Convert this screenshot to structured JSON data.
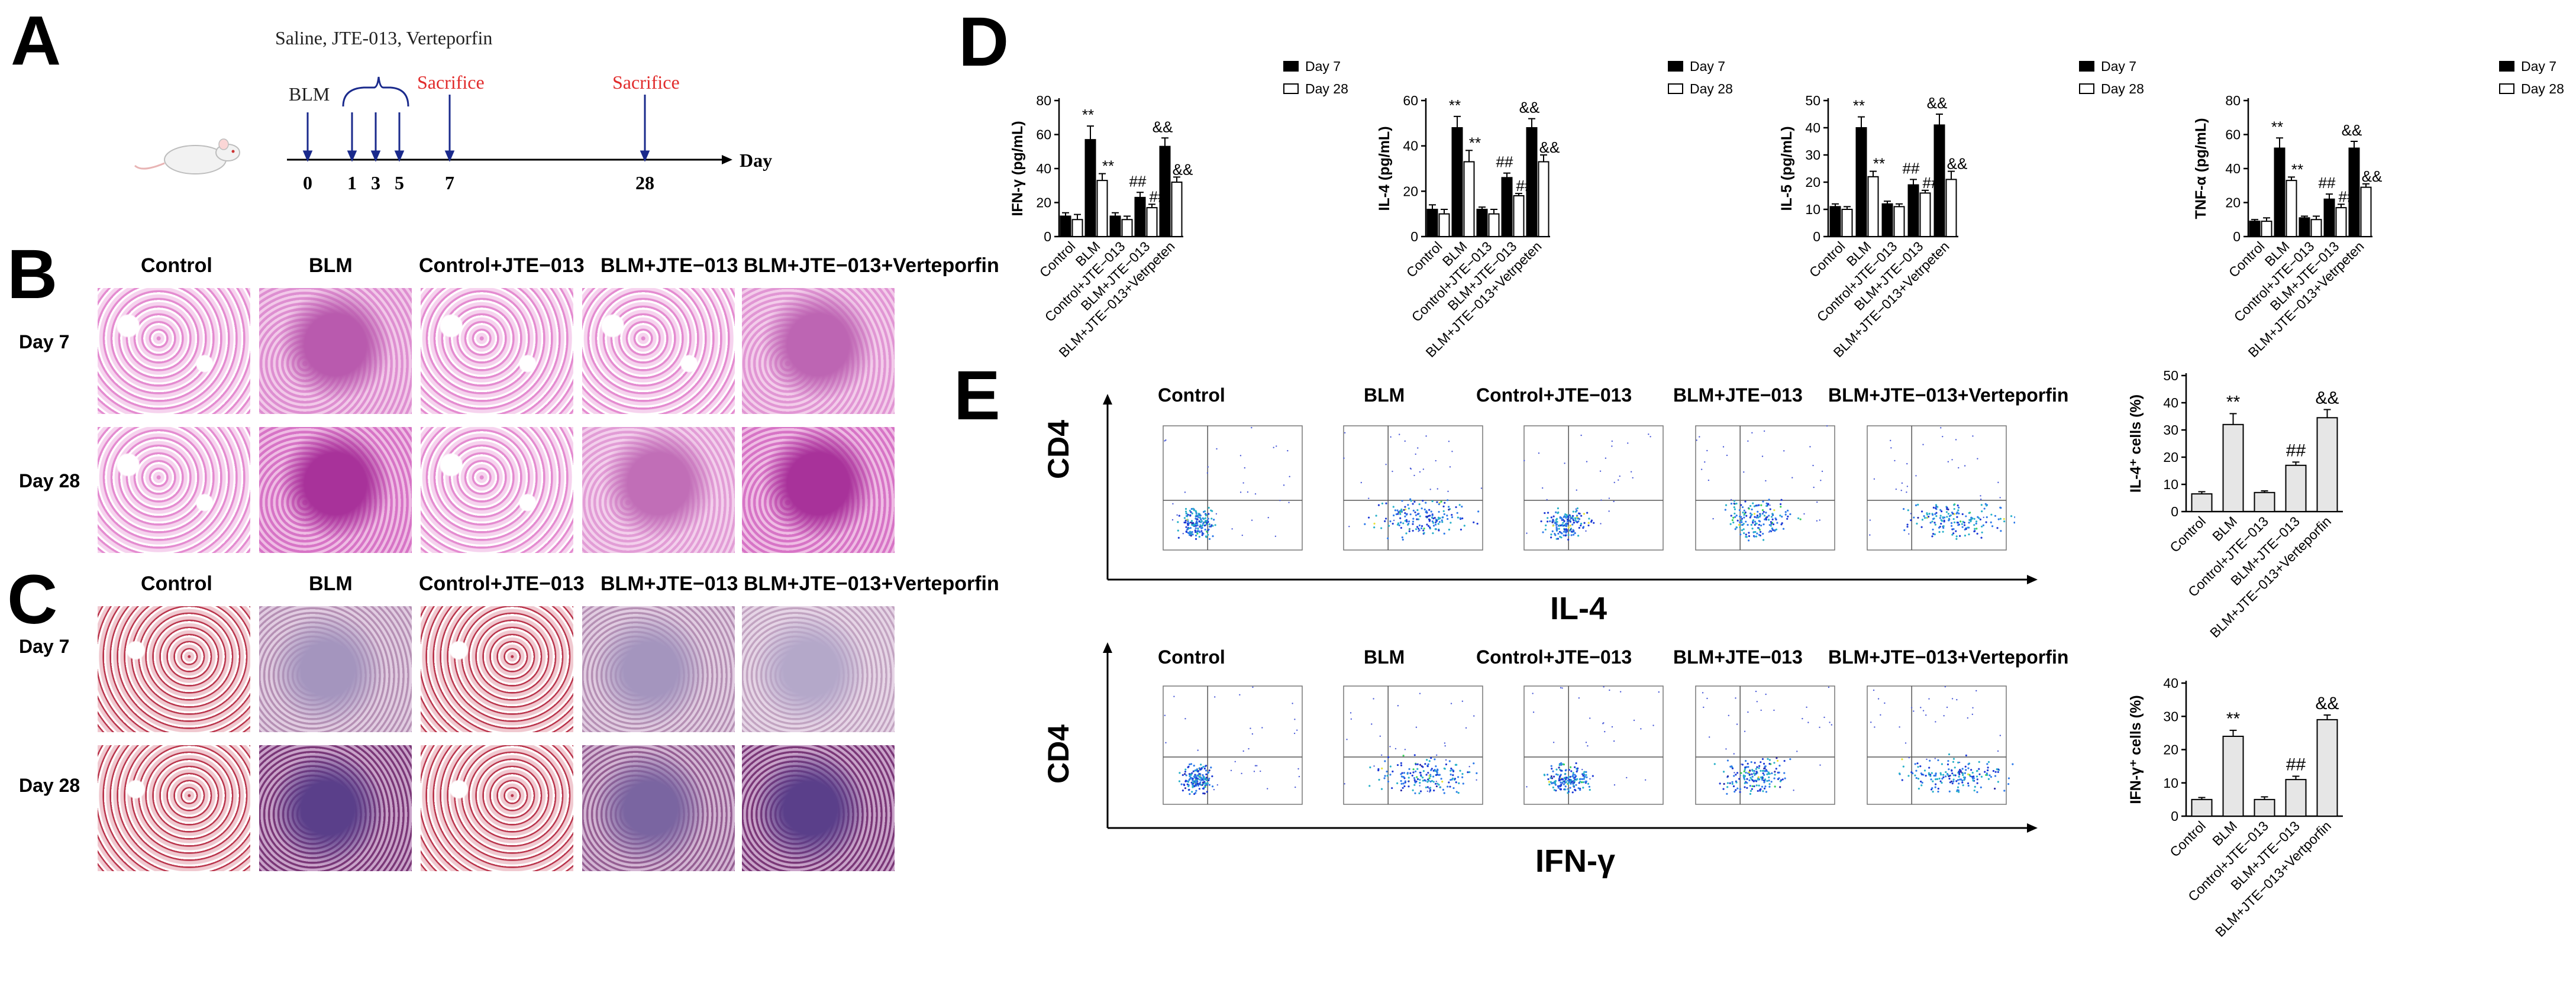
{
  "panels": {
    "A": {
      "letter": "A",
      "treatments": "Saline, JTE-013, Verteporfin",
      "blm": "BLM",
      "sacrifice1": "Sacrifice",
      "sacrifice2": "Sacrifice",
      "axis_unit": "Day",
      "ticks": [
        "0",
        "1",
        "3",
        "5",
        "7",
        "28"
      ]
    },
    "B": {
      "letter": "B",
      "columns": [
        "Control",
        "BLM",
        "Control+JTE−013",
        "BLM+JTE−013",
        "BLM+JTE−013+Verteporfin"
      ],
      "rows": [
        "Day 7",
        "Day 28"
      ]
    },
    "C": {
      "letter": "C",
      "columns": [
        "Control",
        "BLM",
        "Control+JTE−013",
        "BLM+JTE−013",
        "BLM+JTE−013+Verteporfin"
      ],
      "rows": [
        "Day 7",
        "Day 28"
      ]
    },
    "D": {
      "letter": "D"
    },
    "E": {
      "letter": "E",
      "row1_columns": [
        "Control",
        "BLM",
        "Control+JTE−013",
        "BLM+JTE−013",
        "BLM+JTE−013+Verteporfin"
      ],
      "row2_columns": [
        "Control",
        "BLM",
        "Control+JTE−013",
        "BLM+JTE−013",
        "BLM+JTE−013+Verteporfin"
      ],
      "row1_y": "CD4",
      "row1_x": "IL-4",
      "row2_y": "CD4",
      "row2_x": "IFN-γ"
    }
  },
  "chart_data": [
    {
      "type": "bar",
      "id": "ifng",
      "ylabel": "IFN-γ (pg/mL)",
      "ylim": [
        0,
        80
      ],
      "yticks": [
        0,
        20,
        40,
        60,
        80
      ],
      "categories": [
        "Control",
        "BLM",
        "Control+JTE−013",
        "BLM+JTE−013",
        "BLM+JTE−013+Vetrpeten"
      ],
      "legend": "top-right",
      "series": [
        {
          "name": "Day 7",
          "values": [
            12,
            57,
            12,
            23,
            53
          ],
          "errors": [
            2,
            8,
            2,
            3,
            5
          ],
          "sig": [
            "",
            "**",
            "",
            "##",
            "&&"
          ]
        },
        {
          "name": "Day 28",
          "values": [
            10,
            33,
            10,
            17,
            32
          ],
          "errors": [
            3,
            4,
            2,
            2,
            3
          ],
          "sig": [
            "",
            "**",
            "",
            "##",
            "&&"
          ]
        }
      ]
    },
    {
      "type": "bar",
      "id": "il4",
      "ylabel": "IL-4 (pg/mL)",
      "ylim": [
        0,
        60
      ],
      "yticks": [
        0,
        20,
        40,
        60
      ],
      "categories": [
        "Control",
        "BLM",
        "Control+JTE−013",
        "BLM+JTE−013",
        "BLM+JTE−013+Vetrpeten"
      ],
      "legend": "top-right",
      "series": [
        {
          "name": "Day 7",
          "values": [
            12,
            48,
            12,
            26,
            48
          ],
          "errors": [
            2,
            5,
            1,
            2,
            4
          ],
          "sig": [
            "",
            "**",
            "",
            "##",
            "&&"
          ]
        },
        {
          "name": "Day 28",
          "values": [
            10,
            33,
            10,
            18,
            33
          ],
          "errors": [
            2,
            5,
            2,
            1,
            3
          ],
          "sig": [
            "",
            "**",
            "",
            "##",
            "&&"
          ]
        }
      ]
    },
    {
      "type": "bar",
      "id": "il5",
      "ylabel": "IL-5 (pg/mL)",
      "ylim": [
        0,
        50
      ],
      "yticks": [
        0,
        10,
        20,
        30,
        40,
        50
      ],
      "categories": [
        "Control",
        "BLM",
        "Control+JTE−013",
        "BLM+JTE−013",
        "BLM+JTE−013+Vetrpeten"
      ],
      "legend": "top-right",
      "series": [
        {
          "name": "Day 7",
          "values": [
            11,
            40,
            12,
            19,
            41
          ],
          "errors": [
            1,
            4,
            1,
            2,
            4
          ],
          "sig": [
            "",
            "**",
            "",
            "##",
            "&&"
          ]
        },
        {
          "name": "Day 28",
          "values": [
            10,
            22,
            11,
            16,
            21
          ],
          "errors": [
            1,
            2,
            1,
            1,
            3
          ],
          "sig": [
            "",
            "**",
            "",
            "##",
            "&&"
          ]
        }
      ]
    },
    {
      "type": "bar",
      "id": "tnfa",
      "ylabel": "TNF-α (pg/mL)",
      "ylim": [
        0,
        80
      ],
      "yticks": [
        0,
        20,
        40,
        60,
        80
      ],
      "categories": [
        "Control",
        "BLM",
        "Control+JTE−013",
        "BLM+JTE−013",
        "BLM+JTE−013+Vetrpeten"
      ],
      "legend": "top-right",
      "series": [
        {
          "name": "Day 7",
          "values": [
            9,
            52,
            11,
            22,
            52
          ],
          "errors": [
            1,
            6,
            1,
            3,
            4
          ],
          "sig": [
            "",
            "**",
            "",
            "##",
            "&&"
          ]
        },
        {
          "name": "Day 28",
          "values": [
            9,
            33,
            10,
            17,
            29
          ],
          "errors": [
            2,
            2,
            2,
            2,
            2
          ],
          "sig": [
            "",
            "**",
            "",
            "##",
            "&&"
          ]
        }
      ]
    },
    {
      "type": "bar",
      "id": "il4cells",
      "ylabel": "IL-4⁺ cells (%)",
      "ylim": [
        0,
        50
      ],
      "yticks": [
        0,
        10,
        20,
        30,
        40,
        50
      ],
      "categories": [
        "Control",
        "BLM",
        "Control+JTE−013",
        "BLM+JTE−013",
        "BLM+JTE−013+Verteporfin"
      ],
      "series": [
        {
          "values": [
            6.5,
            32,
            7,
            17,
            34.5
          ],
          "errors": [
            0.8,
            4,
            0.6,
            1.2,
            3
          ],
          "sig": [
            "",
            "**",
            "",
            "##",
            "&&"
          ]
        }
      ]
    },
    {
      "type": "bar",
      "id": "ifngcells",
      "ylabel": "IFN-γ⁺ cells (%)",
      "ylim": [
        0,
        40
      ],
      "yticks": [
        0,
        10,
        20,
        30,
        40
      ],
      "categories": [
        "Control",
        "BLM",
        "Control+JTE−013",
        "BLM+JTE−013",
        "BLM+JTE−013+Vertporfin"
      ],
      "series": [
        {
          "values": [
            5,
            24,
            5,
            11,
            29
          ],
          "errors": [
            0.6,
            1.8,
            0.8,
            1,
            1.4
          ],
          "sig": [
            "",
            "**",
            "",
            "##",
            "&&"
          ]
        }
      ]
    }
  ]
}
